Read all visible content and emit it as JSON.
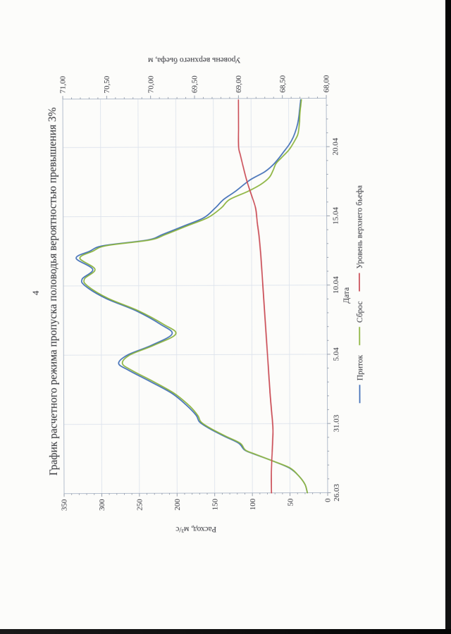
{
  "page": {
    "number": "4"
  },
  "chart_data": {
    "type": "line",
    "title": "График расчетного режима пропуска половодья вероятностью превышения 3%",
    "x_axis": {
      "label": "Дата",
      "tick_labels": [
        "26.03",
        "31.03",
        "5.04",
        "10.04",
        "15.04",
        "20.04"
      ],
      "tick_days": [
        0,
        5,
        10,
        15,
        20,
        25
      ],
      "range_days": [
        0,
        28.5
      ],
      "grid": true
    },
    "y_left": {
      "label": "Расход, м³/с",
      "min": 0,
      "max": 350,
      "step": 50,
      "tick_labels": [
        "0",
        "50",
        "100",
        "150",
        "200",
        "250",
        "300",
        "350"
      ],
      "grid": true
    },
    "y_right": {
      "label": "Уровень верхнего бьефа, м",
      "min": 68.0,
      "max": 71.0,
      "step": 0.5,
      "tick_labels": [
        "68,00",
        "68,50",
        "69,00",
        "69,50",
        "70,00",
        "70,50",
        "71,00"
      ]
    },
    "legend_position": "bottom",
    "series": [
      {
        "name": "Приток",
        "color": "#4471b8",
        "axis": "left",
        "points": [
          [
            0,
            27
          ],
          [
            0.6,
            30
          ],
          [
            1.2,
            38
          ],
          [
            1.8,
            51
          ],
          [
            2.35,
            75
          ],
          [
            2.8,
            97
          ],
          [
            3.1,
            110
          ],
          [
            3.6,
            118
          ],
          [
            4.1,
            137
          ],
          [
            4.7,
            158
          ],
          [
            5.15,
            170
          ],
          [
            5.6,
            174
          ],
          [
            6.3,
            186
          ],
          [
            7.2,
            206
          ],
          [
            8.1,
            236
          ],
          [
            8.9,
            264
          ],
          [
            9.4,
            277
          ],
          [
            10,
            265
          ],
          [
            10.7,
            233
          ],
          [
            11.5,
            206
          ],
          [
            12.2,
            221
          ],
          [
            13.2,
            254
          ],
          [
            14.1,
            294
          ],
          [
            15,
            321
          ],
          [
            15.5,
            325
          ],
          [
            16.2,
            311
          ],
          [
            17,
            333
          ],
          [
            17.5,
            315
          ],
          [
            17.9,
            297
          ],
          [
            18.3,
            238
          ],
          [
            18.7,
            218
          ],
          [
            19.3,
            190
          ],
          [
            19.9,
            163
          ],
          [
            20.6,
            148
          ],
          [
            21.2,
            137
          ],
          [
            21.8,
            121
          ],
          [
            22.6,
            102
          ],
          [
            23.2,
            82
          ],
          [
            23.7,
            71
          ],
          [
            24.2,
            63
          ],
          [
            24.7,
            56
          ],
          [
            25.2,
            49
          ],
          [
            25.7,
            44
          ],
          [
            26.3,
            40
          ],
          [
            27,
            37
          ],
          [
            28.4,
            34
          ]
        ]
      },
      {
        "name": "Сброс",
        "color": "#8cb43f",
        "axis": "left",
        "points": [
          [
            0,
            27
          ],
          [
            0.6,
            30
          ],
          [
            1.2,
            38
          ],
          [
            1.8,
            50
          ],
          [
            2.35,
            75
          ],
          [
            2.8,
            96
          ],
          [
            3.1,
            109
          ],
          [
            3.6,
            116
          ],
          [
            4.1,
            135
          ],
          [
            4.7,
            156
          ],
          [
            5.15,
            168
          ],
          [
            5.6,
            172
          ],
          [
            6.3,
            183
          ],
          [
            7.2,
            203
          ],
          [
            8.1,
            232
          ],
          [
            8.9,
            260
          ],
          [
            9.4,
            272
          ],
          [
            10,
            262
          ],
          [
            10.7,
            230
          ],
          [
            11.5,
            201
          ],
          [
            12.2,
            217
          ],
          [
            13.2,
            251
          ],
          [
            14.1,
            291
          ],
          [
            15,
            318
          ],
          [
            15.5,
            322
          ],
          [
            16.2,
            308
          ],
          [
            17,
            328
          ],
          [
            17.5,
            311
          ],
          [
            17.9,
            293
          ],
          [
            18.3,
            235
          ],
          [
            18.7,
            214
          ],
          [
            19.3,
            186
          ],
          [
            19.9,
            158
          ],
          [
            20.6,
            140
          ],
          [
            21.2,
            129
          ],
          [
            21.8,
            104
          ],
          [
            22.3,
            87
          ],
          [
            22.8,
            76
          ],
          [
            23.3,
            71
          ],
          [
            23.8,
            67
          ],
          [
            24.2,
            60
          ],
          [
            24.7,
            51
          ],
          [
            25,
            47
          ],
          [
            25.45,
            42
          ],
          [
            25.9,
            38
          ],
          [
            26.6,
            36
          ],
          [
            27.5,
            35
          ],
          [
            28.4,
            33
          ]
        ]
      },
      {
        "name": "Уровень верхнего бьефа",
        "color": "#cb4f58",
        "axis": "right",
        "points": [
          [
            0,
            68.64
          ],
          [
            1.5,
            68.64
          ],
          [
            3,
            68.63
          ],
          [
            4.5,
            68.62
          ],
          [
            5.5,
            68.63
          ],
          [
            7,
            68.65
          ],
          [
            9,
            68.67
          ],
          [
            11,
            68.69
          ],
          [
            13,
            68.71
          ],
          [
            15,
            68.73
          ],
          [
            17,
            68.75
          ],
          [
            18.5,
            68.77
          ],
          [
            19.5,
            68.79
          ],
          [
            20.6,
            68.81
          ],
          [
            21.6,
            68.86
          ],
          [
            22.6,
            68.91
          ],
          [
            23.6,
            68.95
          ],
          [
            24.4,
            68.98
          ],
          [
            25,
            69.0
          ],
          [
            26.5,
            69.0
          ],
          [
            28.4,
            69.0
          ]
        ]
      }
    ]
  }
}
